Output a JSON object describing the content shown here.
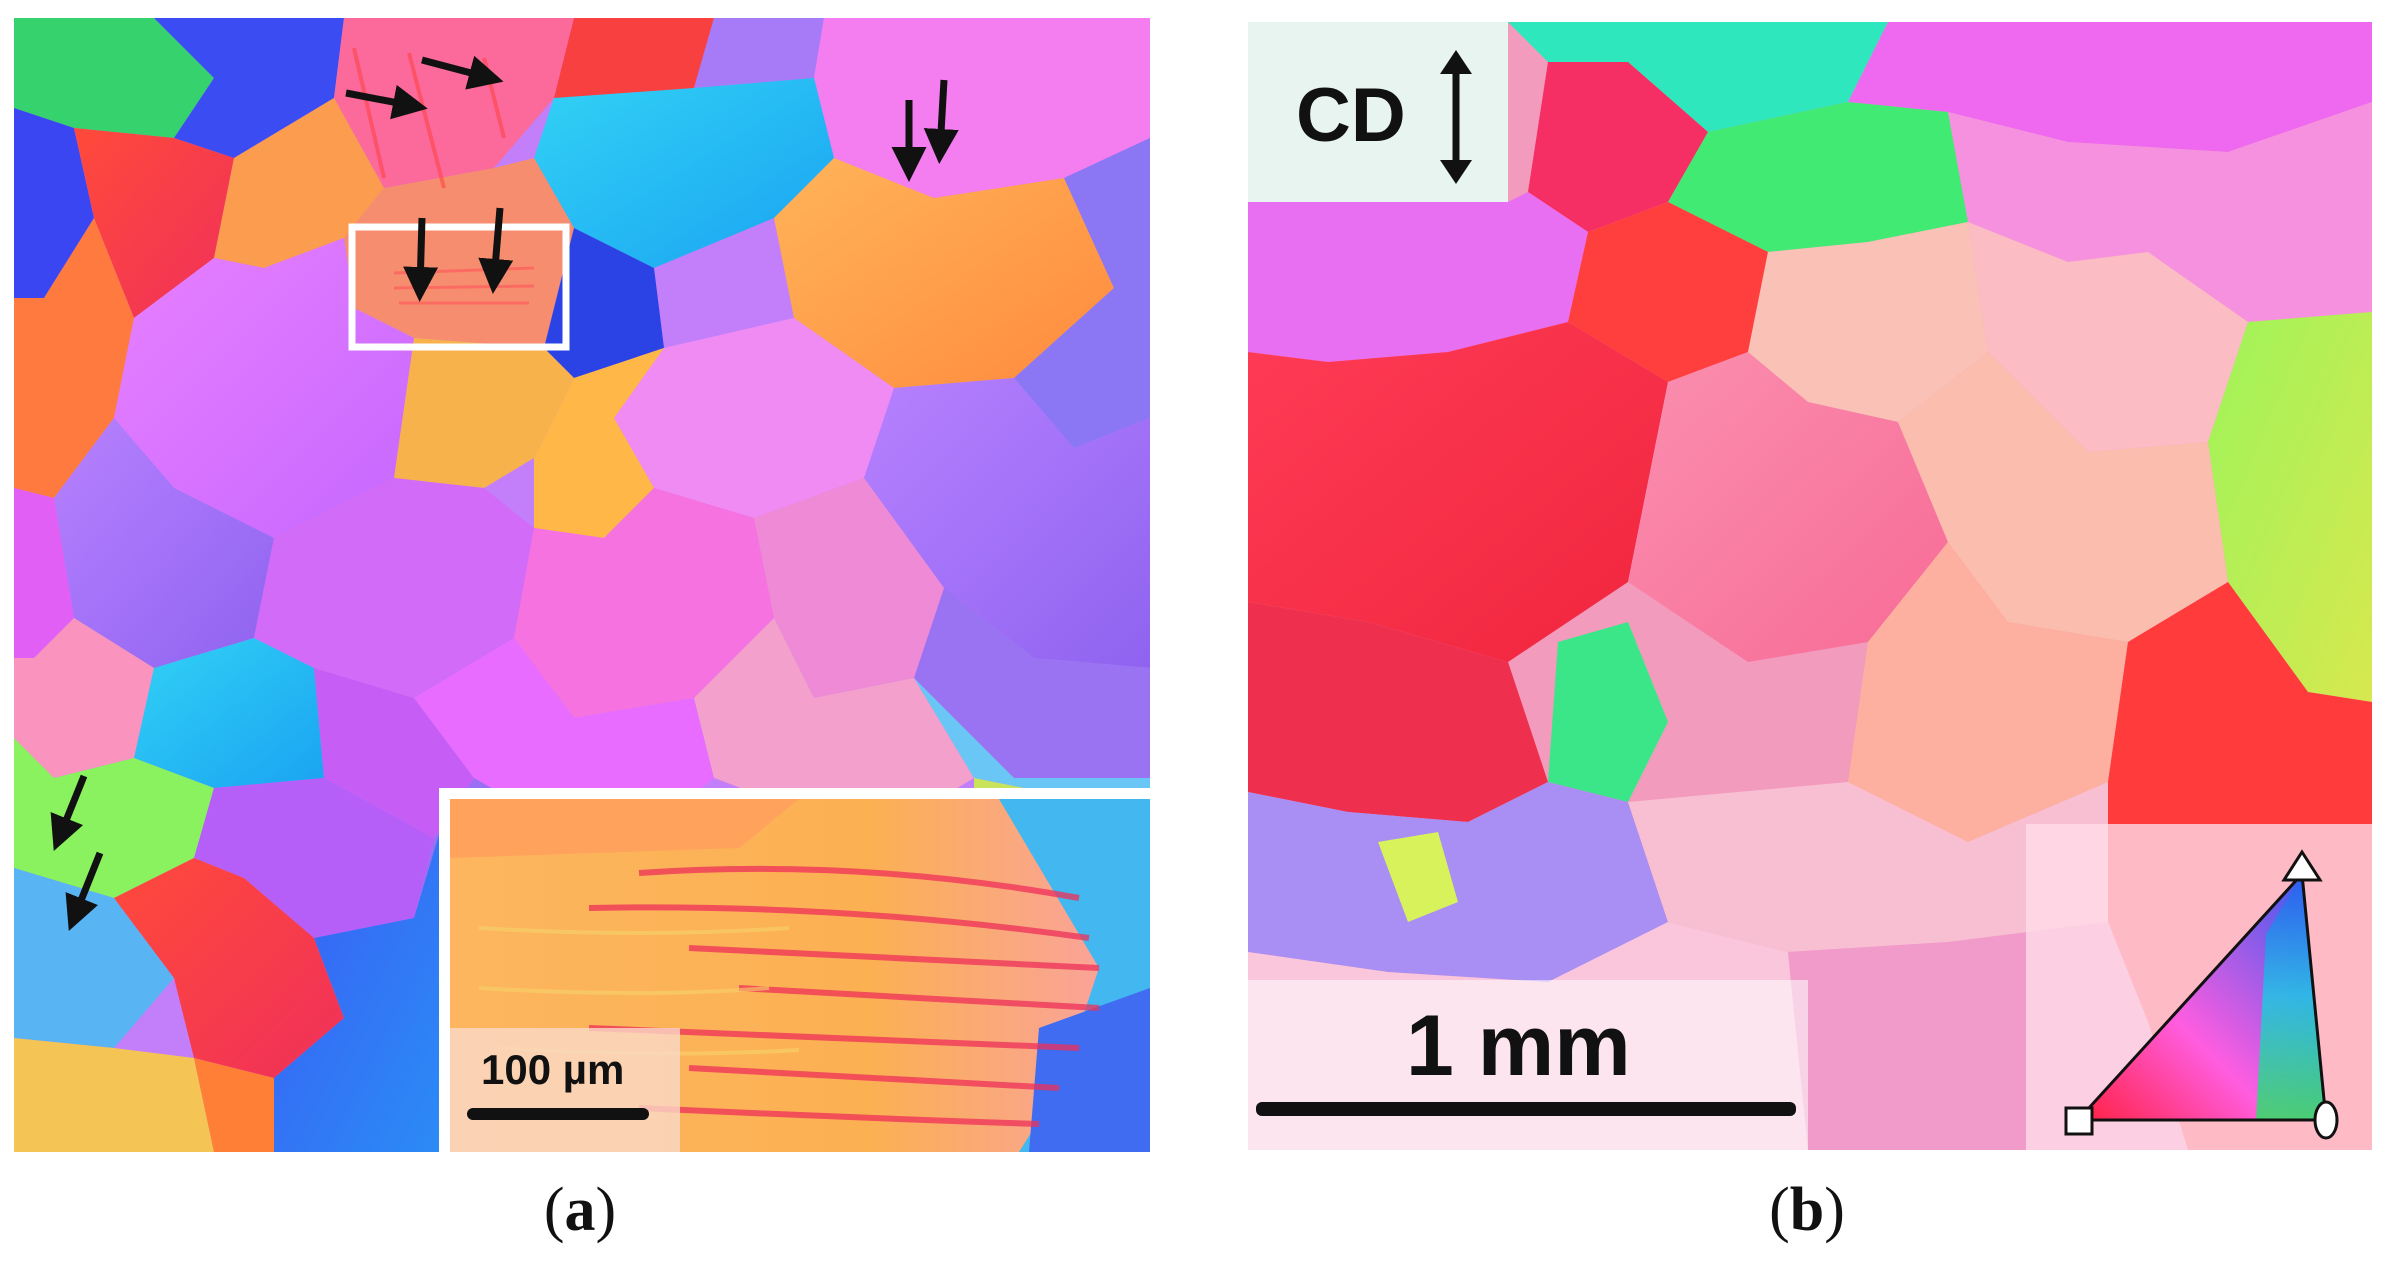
{
  "figure": {
    "panel_a": {
      "caption_open": "(",
      "caption_letter": "a",
      "caption_close": ")",
      "inset_scale_label": "100 µm"
    },
    "panel_b": {
      "caption_open": "(",
      "caption_letter": "b",
      "caption_close": ")",
      "direction_label": "CD",
      "scale_label": "1 mm"
    }
  },
  "colors": {
    "red": "#f2343e",
    "orange": "#fba24a",
    "magenta": "#d86bff",
    "violet": "#a66bf7",
    "blue": "#2d6cf6",
    "cyan": "#20c8f0",
    "green": "#59e860",
    "yellow": "#f5e635",
    "pink": "#f590c6"
  },
  "icons": [
    "down-arrow-icon",
    "right-arrow-icon",
    "double-arrow-icon",
    "ipf-triangle-legend-icon"
  ]
}
